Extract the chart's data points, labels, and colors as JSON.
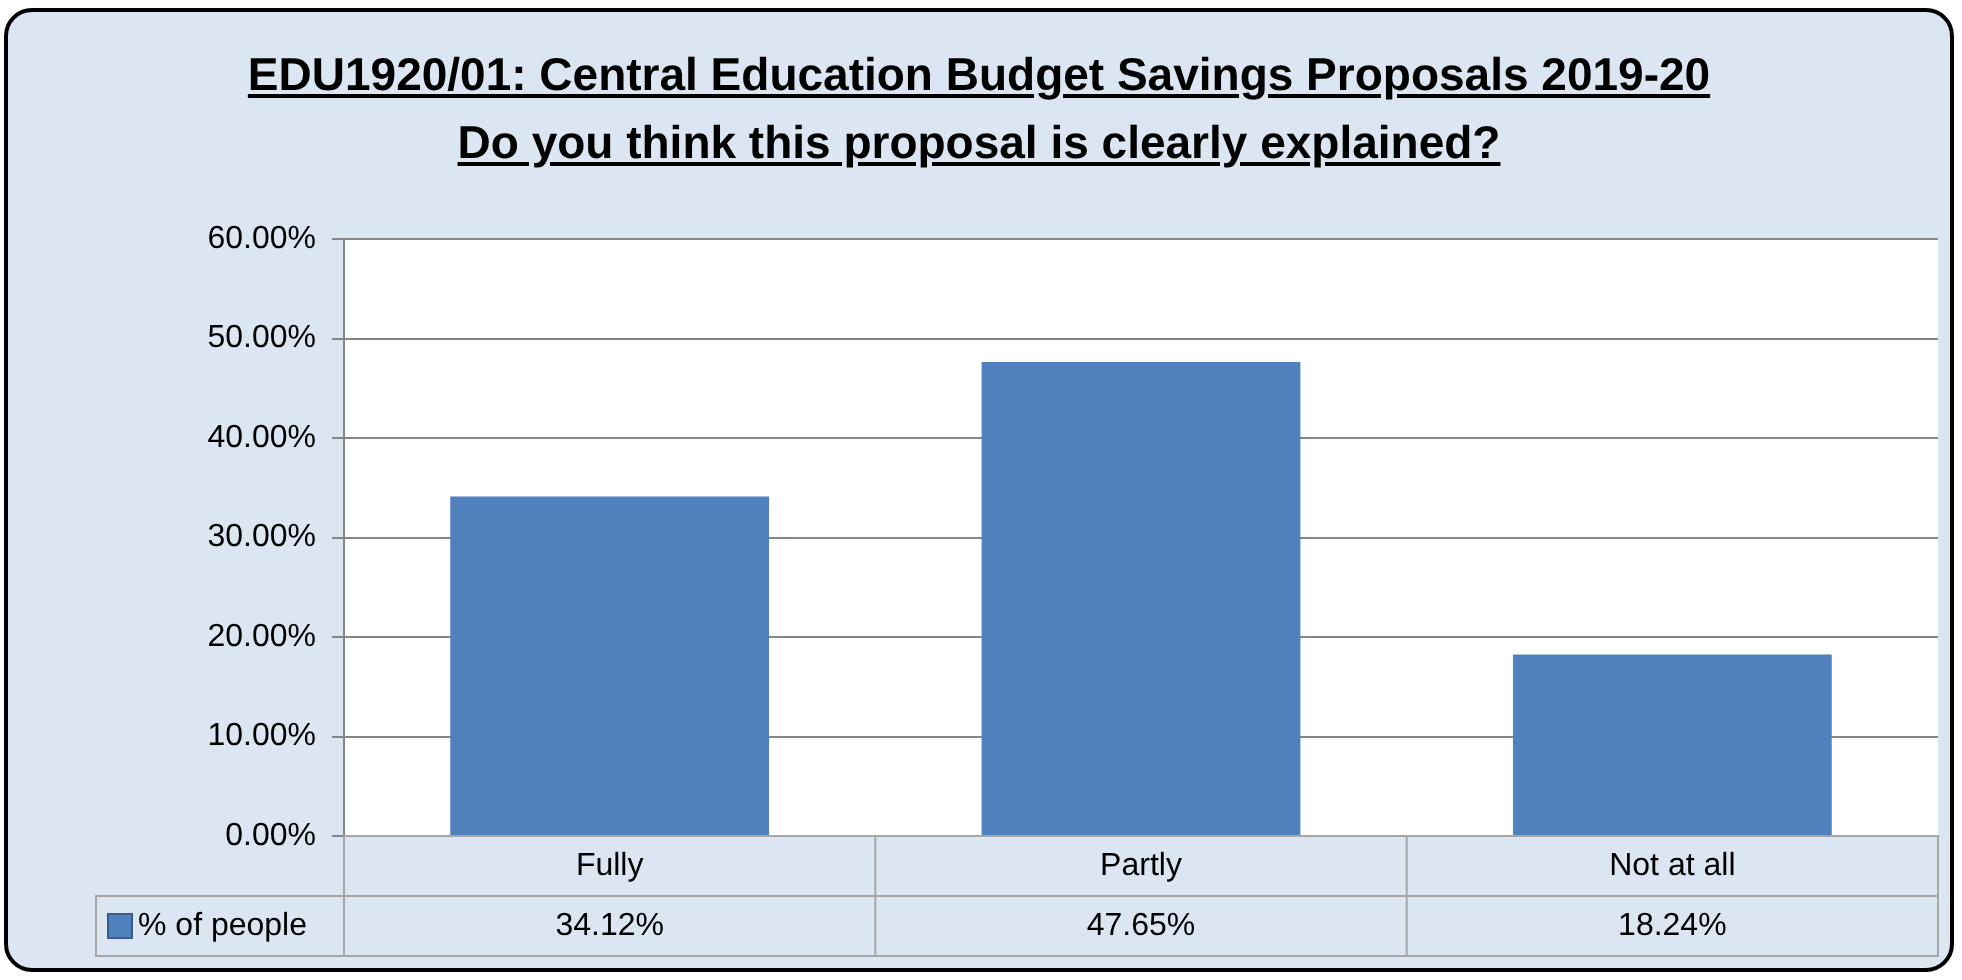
{
  "chart_data": {
    "type": "bar",
    "title": "EDU1920/01: Central Education Budget Savings Proposals 2019-20",
    "subtitle": "Do you think this proposal is clearly explained?",
    "categories": [
      "Fully",
      "Partly",
      "Not at all"
    ],
    "series": [
      {
        "name": "% of people",
        "color": "#4f81bd",
        "values": [
          34.12,
          47.65,
          18.24
        ],
        "value_labels": [
          "34.12%",
          "47.65%",
          "18.24%"
        ]
      }
    ],
    "ylim": [
      0,
      60
    ],
    "yticks": [
      {
        "value": 0,
        "label": "0.00%"
      },
      {
        "value": 10,
        "label": "10.00%"
      },
      {
        "value": 20,
        "label": "20.00%"
      },
      {
        "value": 30,
        "label": "30.00%"
      },
      {
        "value": 40,
        "label": "40.00%"
      },
      {
        "value": 50,
        "label": "50.00%"
      },
      {
        "value": 60,
        "label": "60.00%"
      }
    ],
    "grid": "y",
    "data_labels": true
  }
}
